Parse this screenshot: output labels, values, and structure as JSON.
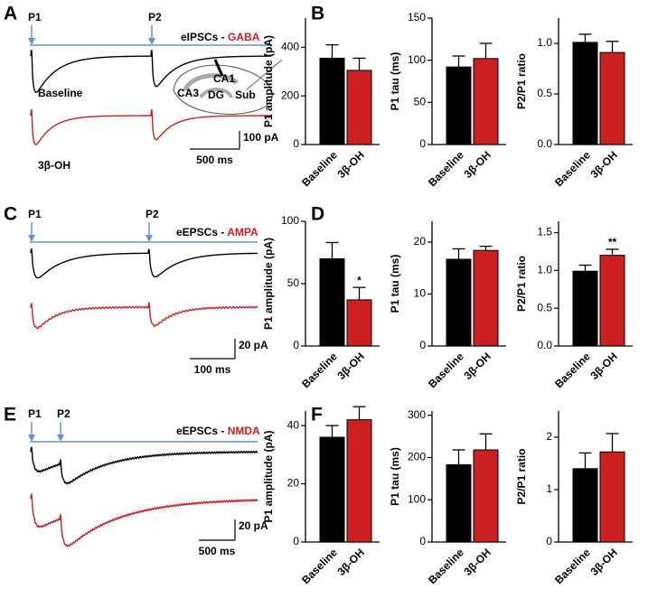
{
  "panels": [
    "A",
    "B",
    "C",
    "D",
    "E",
    "F"
  ],
  "inset": [
    "CA1",
    "CA3",
    "DG",
    "Sub"
  ],
  "traces": [
    {
      "stimuli": [
        "P1",
        "P2"
      ],
      "title": "eIPSCs - ",
      "receptor": "GABA",
      "labels": [
        "Baseline",
        "3β-OH"
      ],
      "scale_y": "100 pA",
      "scale_x": "500 ms"
    },
    {
      "stimuli": [
        "P1",
        "P2"
      ],
      "title": "eEPSCs - ",
      "receptor": "AMPA",
      "scale_y": "20 pA",
      "scale_x": "100 ms"
    },
    {
      "stimuli": [
        "P1",
        "P2"
      ],
      "title": "eEPSCs - ",
      "receptor": "NMDA",
      "scale_y": "20 pA",
      "scale_x": "500 ms"
    }
  ],
  "chart_data": [
    {
      "type": "bar",
      "ylabel": "P1 amplitude (pA)",
      "categories": [
        "Baseline",
        "3β-OH"
      ],
      "values": [
        355,
        305
      ],
      "errors": [
        55,
        50
      ],
      "colors": [
        "#000000",
        "#cc1f1f"
      ],
      "ylim": [
        0,
        520
      ],
      "yticks": [
        0,
        200,
        400
      ]
    },
    {
      "type": "bar",
      "ylabel": "P1 tau (ms)",
      "categories": [
        "Baseline",
        "3β-OH"
      ],
      "values": [
        92,
        102
      ],
      "errors": [
        13,
        18
      ],
      "colors": [
        "#000000",
        "#cc1f1f"
      ],
      "ylim": [
        0,
        150
      ],
      "yticks": [
        0,
        50,
        100,
        150
      ]
    },
    {
      "type": "bar",
      "ylabel": "P2/P1 ratio",
      "categories": [
        "Baseline",
        "3β-OH"
      ],
      "values": [
        1.01,
        0.91
      ],
      "errors": [
        0.08,
        0.11
      ],
      "colors": [
        "#000000",
        "#cc1f1f"
      ],
      "ylim": [
        0,
        1.25
      ],
      "yticks": [
        {
          "value": 0,
          "label": "0.0"
        },
        0.5,
        {
          "value": 1,
          "label": "1.0"
        }
      ]
    },
    {
      "type": "bar",
      "ylabel": "P1 amplitude (pA)",
      "categories": [
        "Baseline",
        "3β-OH"
      ],
      "values": [
        70,
        37
      ],
      "errors": [
        13,
        10
      ],
      "colors": [
        "#000000",
        "#cc1f1f"
      ],
      "ylim": [
        0,
        100
      ],
      "yticks": [
        0,
        50,
        100
      ],
      "annotations": [
        {
          "text": "*",
          "x": "3β-OH"
        }
      ]
    },
    {
      "type": "bar",
      "ylabel": "P1 tau (ms)",
      "categories": [
        "Baseline",
        "3β-OH"
      ],
      "values": [
        16.7,
        18.4
      ],
      "errors": [
        2,
        0.8
      ],
      "colors": [
        "#000000",
        "#cc1f1f"
      ],
      "ylim": [
        0,
        24
      ],
      "yticks": [
        0,
        10,
        20
      ]
    },
    {
      "type": "bar",
      "ylabel": "P2/P1 ratio",
      "categories": [
        "Baseline",
        "3β-OH"
      ],
      "values": [
        0.99,
        1.2
      ],
      "errors": [
        0.08,
        0.08
      ],
      "colors": [
        "#000000",
        "#cc1f1f"
      ],
      "ylim": [
        0,
        1.65
      ],
      "yticks": [
        {
          "value": 0,
          "label": "0.0"
        },
        0.5,
        {
          "value": 1,
          "label": "1.0"
        },
        1.5
      ],
      "annotations": [
        {
          "text": "**",
          "x": "3β-OH"
        }
      ]
    },
    {
      "type": "bar",
      "ylabel": "P1 amplitude (pA)",
      "categories": [
        "Baseline",
        "3β-OH"
      ],
      "values": [
        36,
        42
      ],
      "errors": [
        4,
        4.5
      ],
      "colors": [
        "#000000",
        "#cc1f1f"
      ],
      "ylim": [
        0,
        45
      ],
      "yticks": [
        0,
        20,
        40
      ]
    },
    {
      "type": "bar",
      "ylabel": "P1 tau (ms)",
      "categories": [
        "Baseline",
        "3β-OH"
      ],
      "values": [
        183,
        218
      ],
      "errors": [
        35,
        38
      ],
      "colors": [
        "#000000",
        "#cc1f1f"
      ],
      "ylim": [
        0,
        310
      ],
      "yticks": [
        0,
        100,
        200,
        300
      ]
    },
    {
      "type": "bar",
      "ylabel": "P2/P1 ratio",
      "categories": [
        "Baseline",
        "3β-OH"
      ],
      "values": [
        1.4,
        1.72
      ],
      "errors": [
        0.3,
        0.35
      ],
      "colors": [
        "#000000",
        "#cc1f1f"
      ],
      "ylim": [
        0,
        2.5
      ],
      "yticks": [
        0,
        1,
        2
      ]
    }
  ]
}
